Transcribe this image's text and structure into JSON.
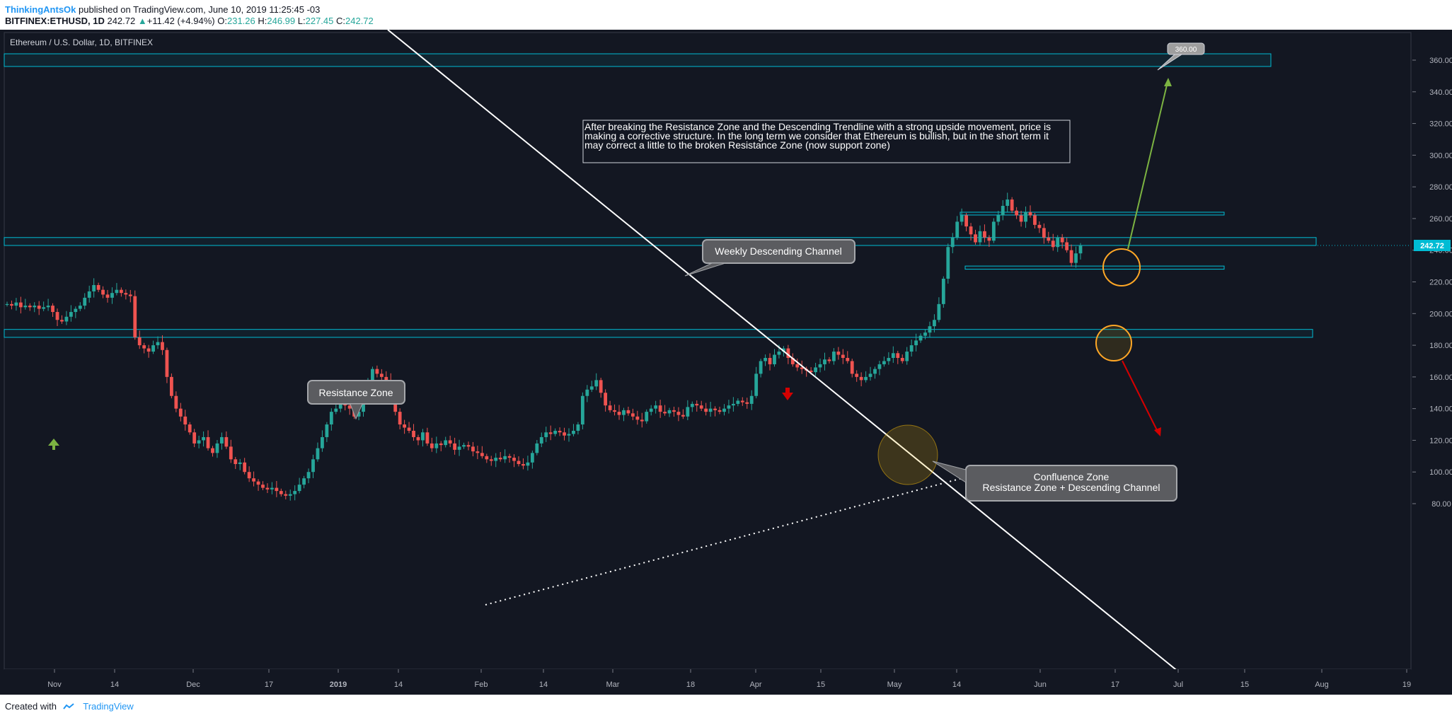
{
  "header": {
    "author": "ThinkingAntsOk",
    "published_text": "published on TradingView.com, June 10, 2019 11:25:45 -03",
    "symbol": "BITFINEX:ETHUSD, 1D",
    "last": "242.72",
    "change": "+11.42 (+4.94%)",
    "o_label": "O:",
    "o_value": "231.26",
    "h_label": "H:",
    "h_value": "246.99",
    "l_label": "L:",
    "l_value": "227.45",
    "c_label": "C:",
    "c_value": "242.72"
  },
  "footer": {
    "created_with": "Created with",
    "brand": "TradingView"
  },
  "colors": {
    "background": "#131722",
    "up": "#26a69a",
    "down": "#ef5350",
    "zone": "#00bcd4",
    "trendline": "#ffffff",
    "target": "#ffa726",
    "green_arrow": "#7cb342",
    "red_arrow": "#d50000"
  },
  "chart_data": {
    "type": "candlestick",
    "title": "Ethereum / U.S. Dollar, 1D, BITFINEX",
    "last_price_label": "242.72",
    "y_axis_ticks": [
      360,
      340,
      320,
      300,
      280,
      260,
      240,
      220,
      200,
      180,
      160,
      140,
      120,
      100,
      80
    ],
    "y_axis_labels": [
      "360.00",
      "340.00",
      "320.00",
      "300.00",
      "280.00",
      "260.00",
      "240.00",
      "220.00",
      "200.00",
      "180.00",
      "160.00",
      "140.00",
      "120.00",
      "100.00",
      "80.00"
    ],
    "x_axis_labels": [
      "Nov",
      "14",
      "Dec",
      "17",
      "2019",
      "14",
      "Feb",
      "14",
      "Mar",
      "18",
      "Apr",
      "15",
      "May",
      "14",
      "Jun",
      "17",
      "Jul",
      "15",
      "Aug",
      "19"
    ],
    "annotations": {
      "weekly_channel": "Weekly Descending Channel",
      "resistance": "Resistance Zone",
      "confluence_line1": "Confluence Zone",
      "confluence_line2": "Resistance Zone + Descending Channel",
      "target_label": "360.00",
      "comment": "After breaking the Resistance Zone and the Descending Trendline with a strong upside movement, price is making a corrective structure. In the long term we consider that Ethereum is bullish, but in the short term it may correct a little to the broken Resistance Zone (now support zone)"
    },
    "zones": [
      {
        "name": "target-zone",
        "low": 356,
        "high": 364
      },
      {
        "name": "current-zone",
        "low": 243,
        "high": 248
      },
      {
        "name": "upper-box",
        "low": 263,
        "high": 264
      },
      {
        "name": "lower-box",
        "low": 228,
        "high": 230
      },
      {
        "name": "resistance-zone",
        "low": 185,
        "high": 190
      }
    ],
    "candles_start_value": 206,
    "closes": [
      206,
      205,
      207,
      204,
      205,
      204,
      205,
      203,
      204,
      205,
      201,
      196,
      195,
      198,
      201,
      203,
      205,
      210,
      214,
      218,
      215,
      212,
      210,
      213,
      215,
      213,
      212,
      211,
      185,
      180,
      178,
      176,
      180,
      182,
      177,
      160,
      148,
      140,
      135,
      130,
      125,
      118,
      120,
      122,
      115,
      112,
      118,
      122,
      116,
      108,
      105,
      106,
      100,
      96,
      94,
      92,
      90,
      89,
      90,
      88,
      86,
      85,
      86,
      88,
      92,
      96,
      100,
      108,
      115,
      122,
      130,
      138,
      140,
      146,
      142,
      140,
      135,
      138,
      148,
      155,
      165,
      162,
      160,
      158,
      155,
      138,
      130,
      128,
      126,
      122,
      120,
      125,
      118,
      115,
      118,
      117,
      120,
      118,
      114,
      116,
      117,
      116,
      113,
      112,
      110,
      108,
      107,
      109,
      108,
      110,
      109,
      107,
      105,
      104,
      106,
      112,
      118,
      122,
      125,
      124,
      126,
      125,
      123,
      124,
      126,
      130,
      148,
      152,
      154,
      158,
      150,
      142,
      139,
      138,
      136,
      139,
      137,
      135,
      133,
      132,
      138,
      140,
      142,
      138,
      137,
      139,
      138,
      136,
      135,
      141,
      143,
      142,
      140,
      138,
      140,
      139,
      138,
      140,
      142,
      143,
      145,
      144,
      143,
      148,
      162,
      170,
      172,
      168,
      174,
      176,
      178,
      172,
      168,
      166,
      165,
      164,
      163,
      166,
      168,
      171,
      170,
      176,
      174,
      172,
      170,
      162,
      160,
      158,
      160,
      162,
      165,
      168,
      170,
      172,
      175,
      172,
      170,
      176,
      180,
      183,
      186,
      188,
      192,
      196,
      206,
      222,
      242,
      248,
      258,
      262,
      255,
      250,
      245,
      252,
      248,
      246,
      258,
      262,
      268,
      272,
      265,
      262,
      258,
      264,
      262,
      256,
      254,
      248,
      246,
      242,
      248,
      245,
      240,
      232,
      238,
      243
    ]
  }
}
